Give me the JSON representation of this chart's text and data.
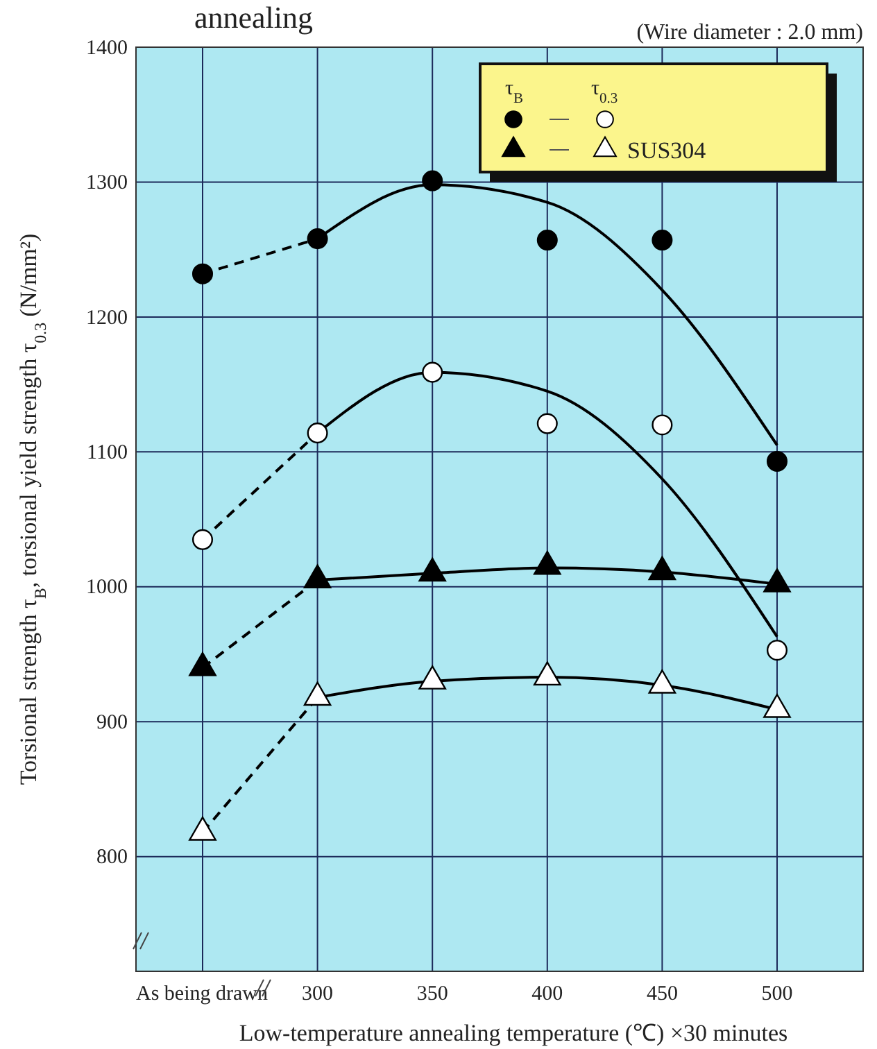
{
  "chart_data": {
    "type": "scatter",
    "title": "annealing",
    "subtitle": "(Wire diameter : 2.0 mm)",
    "xlabel": "Low-temperature annealing temperature (℃) ×30 minutes",
    "ylabel": "Torsional strength τ$_{B}$, torsional yield strength τ$_{0.3}$ (N/mm²)",
    "categories": [
      "As being drawn",
      "300",
      "350",
      "400",
      "450",
      "500"
    ],
    "ylim": [
      715,
      1400
    ],
    "yticks": [
      800,
      900,
      1000,
      1100,
      1200,
      1300,
      1400
    ],
    "grid": true,
    "legend": "top right",
    "annotations": [
      "τ$_{B}$",
      "τ$_{0.3}$"
    ],
    "series": [
      {
        "type": "line",
        "line_style": "dashed",
        "marker": "none",
        "color": "#000000",
        "values": [
          1232,
          1258,
          null,
          null,
          null,
          null
        ]
      },
      {
        "type": "line",
        "line_style": "dashed",
        "marker": "none",
        "color": "#000000",
        "values": [
          1035,
          1114,
          null,
          null,
          null,
          null
        ]
      },
      {
        "type": "line",
        "line_style": "dashed",
        "marker": "none",
        "color": "#000000",
        "values": [
          940,
          1005,
          null,
          null,
          null,
          null
        ]
      },
      {
        "type": "line",
        "line_style": "dashed",
        "marker": "none",
        "color": "#000000",
        "values": [
          818,
          918,
          null,
          null,
          null,
          null
        ]
      },
      {
        "type": "line",
        "line_style": "solid",
        "marker": "none",
        "color": "#000000",
        "values": [
          null,
          1258,
          1298,
          1285,
          1220,
          1105
        ]
      },
      {
        "type": "line",
        "line_style": "solid",
        "marker": "none",
        "color": "#000000",
        "values": [
          null,
          1114,
          1159,
          1145,
          1080,
          963
        ]
      },
      {
        "type": "line",
        "line_style": "solid",
        "marker": "none",
        "color": "#000000",
        "values": [
          null,
          1005,
          1010,
          1014,
          1011,
          1002
        ]
      },
      {
        "type": "line",
        "line_style": "solid",
        "marker": "none",
        "color": "#000000",
        "values": [
          null,
          918,
          930,
          933,
          927,
          909
        ]
      },
      {
        "marker": "circle",
        "color": "#000000",
        "values": [
          1232,
          1258,
          1301,
          1257,
          1257,
          1093
        ]
      },
      {
        "marker": "circle",
        "color": "#ffffff",
        "values": [
          1035,
          1114,
          1159,
          1121,
          1120,
          953
        ]
      },
      {
        "marker": "triangle",
        "color": "#000000",
        "name": "SUS304",
        "values": [
          940,
          1005,
          1010,
          1015,
          1011,
          1002
        ]
      },
      {
        "marker": "triangle",
        "color": "#ffffff",
        "values": [
          818,
          918,
          930,
          933,
          927,
          909
        ]
      }
    ]
  }
}
